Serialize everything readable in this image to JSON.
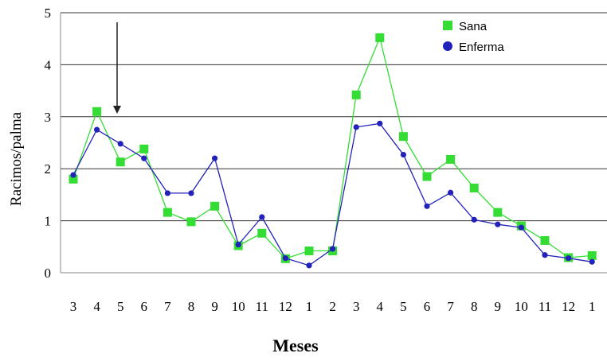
{
  "chart_data": {
    "type": "line",
    "title": "",
    "xlabel": "Meses",
    "ylabel": "Racimos/palma",
    "ylim": [
      0,
      5
    ],
    "yticks": [
      0,
      1,
      2,
      3,
      4,
      5
    ],
    "grid": "horizontal",
    "legend_position": "top-right",
    "annotation": "arrow pointing down at month 5",
    "categories": [
      "3",
      "4",
      "5",
      "6",
      "7",
      "8",
      "9",
      "10",
      "11",
      "12",
      "1",
      "2",
      "3",
      "4",
      "5",
      "6",
      "7",
      "8",
      "9",
      "10",
      "11",
      "12",
      "1"
    ],
    "series": [
      {
        "name": "Sana",
        "marker": "square",
        "color": "#33dd33",
        "values": [
          1.8,
          3.1,
          2.13,
          2.38,
          1.16,
          0.98,
          1.28,
          0.52,
          0.76,
          0.27,
          0.42,
          0.42,
          3.42,
          4.52,
          2.62,
          1.85,
          2.18,
          1.63,
          1.16,
          0.9,
          0.62,
          0.29,
          0.33
        ]
      },
      {
        "name": "Enferma",
        "marker": "circle",
        "color": "#2222bb",
        "values": [
          1.88,
          2.75,
          2.48,
          2.2,
          1.53,
          1.53,
          2.2,
          0.54,
          1.07,
          0.28,
          0.14,
          0.46,
          2.8,
          2.87,
          2.27,
          1.28,
          1.54,
          1.02,
          0.93,
          0.87,
          0.34,
          0.28,
          0.21
        ]
      }
    ]
  }
}
